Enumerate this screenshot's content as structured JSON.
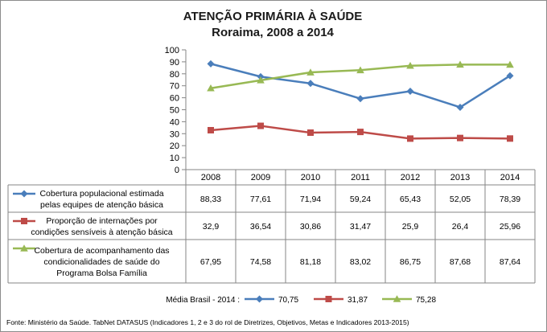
{
  "chart_data": {
    "type": "line",
    "title": "ATENÇÃO PRIMÁRIA À SAÚDE",
    "subtitle": "Roraima, 2008 a 2014",
    "categories": [
      "2008",
      "2009",
      "2010",
      "2011",
      "2012",
      "2013",
      "2014"
    ],
    "ylim": [
      0,
      100
    ],
    "yticks": [
      "0",
      "10",
      "20",
      "30",
      "40",
      "50",
      "60",
      "70",
      "80",
      "90",
      "100"
    ],
    "grid": false,
    "data_table": true,
    "series": [
      {
        "name": "Cobertura populacional estimada pelas equipes de atenção básica",
        "label_lines": [
          "Cobertura  populacional estimada",
          "pelas equipes de atenção básica"
        ],
        "color": "#4a7ebb",
        "marker": "diamond",
        "values": [
          88.33,
          77.61,
          71.94,
          59.24,
          65.43,
          52.05,
          78.39
        ],
        "display": [
          "88,33",
          "77,61",
          "71,94",
          "59,24",
          "65,43",
          "52,05",
          "78,39"
        ]
      },
      {
        "name": "Proporção de internações por condições sensíveis à atenção básica",
        "label_lines": [
          "Proporção de internações por",
          "condições sensíveis  à atenção básica"
        ],
        "color": "#be4b48",
        "marker": "square",
        "values": [
          32.9,
          36.54,
          30.86,
          31.47,
          25.9,
          26.4,
          25.96
        ],
        "display": [
          "32,9",
          "36,54",
          "30,86",
          "31,47",
          "25,9",
          "26,4",
          "25,96"
        ]
      },
      {
        "name": "Cobertura de acompanhamento das condicionalidades de saúde do Programa Bolsa Família",
        "label_lines": [
          "Cobertura de acompanhamento das",
          "condicionalidades de saúde do",
          "Programa Bolsa Família"
        ],
        "color": "#98b954",
        "marker": "triangle",
        "values": [
          67.95,
          74.58,
          81.18,
          83.02,
          86.75,
          87.68,
          87.64
        ],
        "display": [
          "67,95",
          "74,58",
          "81,18",
          "83,02",
          "86,75",
          "87,68",
          "87,64"
        ]
      }
    ],
    "brazil_average": {
      "label": "Média Brasil - 2014 :",
      "values": [
        "70,75",
        "31,87",
        "75,28"
      ]
    },
    "source": "Fonte: Ministério da Saúde. TabNet DATASUS (Indicadores 1, 2 e 3 do rol de Diretrizes, Objetivos, Metas e Indicadores 2013-2015)"
  }
}
